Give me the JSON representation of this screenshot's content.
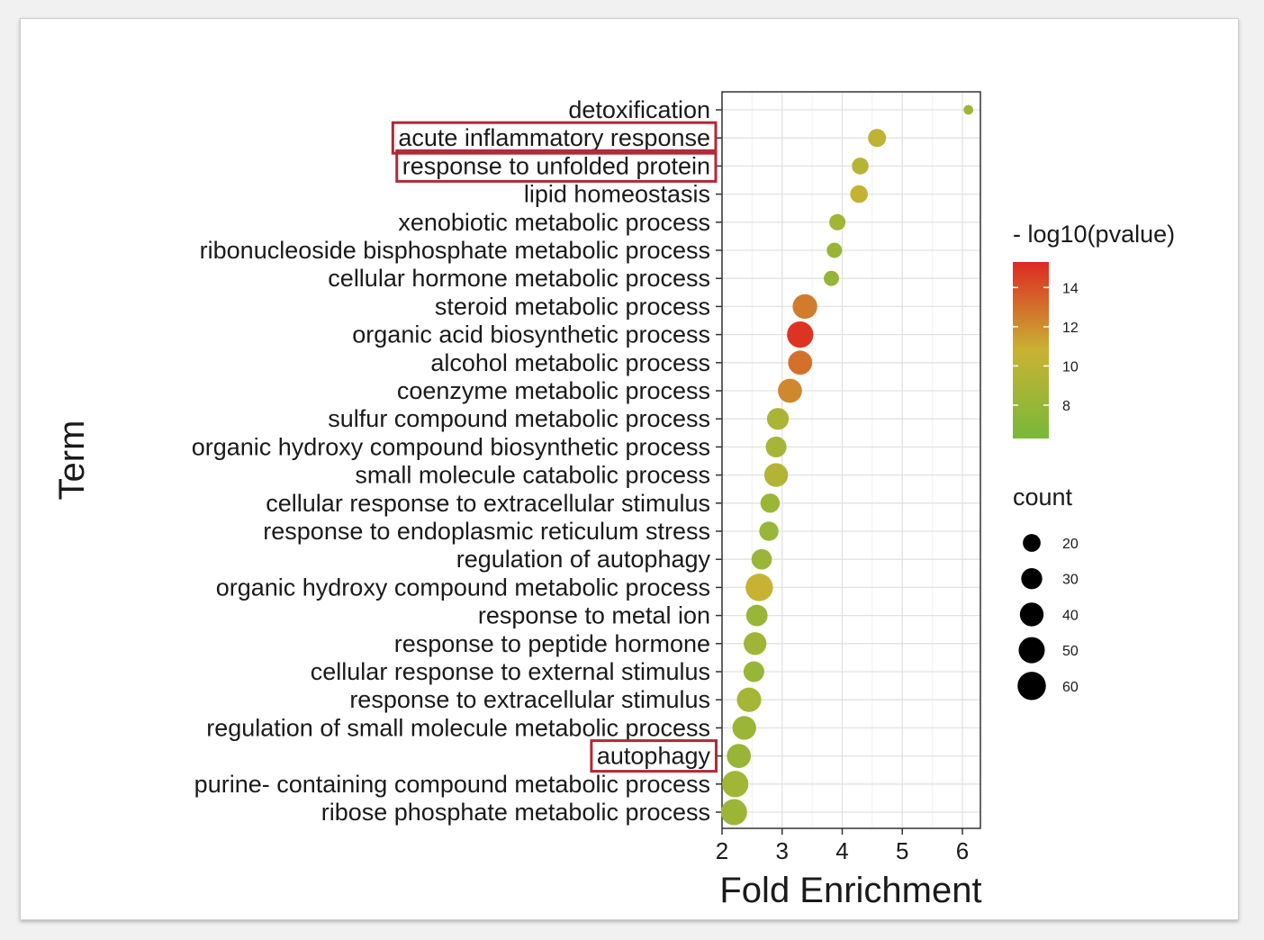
{
  "chart_data": {
    "type": "scatter",
    "xlabel": "Fold Enrichment",
    "ylabel": "Term",
    "xlim": [
      2,
      6.3
    ],
    "xticks": [
      2,
      3,
      4,
      5,
      6
    ],
    "grid": true,
    "color_legend": {
      "title": "- log10(pvalue)",
      "ticks": [
        14,
        12,
        10,
        8
      ],
      "range": [
        6.3,
        15.3
      ],
      "colors": [
        "#78b83a",
        "#dd2a23"
      ]
    },
    "size_legend": {
      "title": "count",
      "ticks": [
        20,
        30,
        40,
        50,
        60
      ]
    },
    "highlight_color": "#b02a35",
    "terms": [
      {
        "term": "detoxification",
        "fold": 6.1,
        "pvalue": 8.5,
        "count": 3,
        "highlighted": false
      },
      {
        "term": "acute inflammatory response",
        "fold": 4.58,
        "pvalue": 10.2,
        "count": 17,
        "highlighted": true
      },
      {
        "term": "response to unfolded protein",
        "fold": 4.3,
        "pvalue": 9.8,
        "count": 14,
        "highlighted": true
      },
      {
        "term": "lipid homeostasis",
        "fold": 4.28,
        "pvalue": 10.6,
        "count": 16,
        "highlighted": false
      },
      {
        "term": "xenobiotic metabolic process",
        "fold": 3.92,
        "pvalue": 8.6,
        "count": 13,
        "highlighted": false
      },
      {
        "term": "ribonucleoside bisphosphate metabolic process",
        "fold": 3.87,
        "pvalue": 8.0,
        "count": 11,
        "highlighted": false
      },
      {
        "term": "cellular hormone metabolic process",
        "fold": 3.82,
        "pvalue": 7.8,
        "count": 11,
        "highlighted": false
      },
      {
        "term": "steroid metabolic process",
        "fold": 3.38,
        "pvalue": 12.6,
        "count": 36,
        "highlighted": false
      },
      {
        "term": "organic acid biosynthetic process",
        "fold": 3.3,
        "pvalue": 15.0,
        "count": 42,
        "highlighted": false
      },
      {
        "term": "alcohol metabolic process",
        "fold": 3.3,
        "pvalue": 13.0,
        "count": 34,
        "highlighted": false
      },
      {
        "term": "coenzyme metabolic process",
        "fold": 3.13,
        "pvalue": 12.2,
        "count": 34,
        "highlighted": false
      },
      {
        "term": "sulfur compound metabolic process",
        "fold": 2.93,
        "pvalue": 9.2,
        "count": 27,
        "highlighted": false
      },
      {
        "term": "organic hydroxy compound biosynthetic process",
        "fold": 2.9,
        "pvalue": 8.8,
        "count": 24,
        "highlighted": false
      },
      {
        "term": "small molecule catabolic process",
        "fold": 2.9,
        "pvalue": 9.6,
        "count": 33,
        "highlighted": false
      },
      {
        "term": "cellular response to extracellular stimulus",
        "fold": 2.8,
        "pvalue": 8.3,
        "count": 20,
        "highlighted": false
      },
      {
        "term": "response to endoplasmic reticulum stress",
        "fold": 2.78,
        "pvalue": 8.1,
        "count": 20,
        "highlighted": false
      },
      {
        "term": "regulation of autophagy",
        "fold": 2.66,
        "pvalue": 8.2,
        "count": 23,
        "highlighted": false
      },
      {
        "term": "organic hydroxy compound metabolic process",
        "fold": 2.62,
        "pvalue": 10.7,
        "count": 46,
        "highlighted": false
      },
      {
        "term": "response to metal ion",
        "fold": 2.58,
        "pvalue": 8.1,
        "count": 26,
        "highlighted": false
      },
      {
        "term": "response to peptide hormone",
        "fold": 2.55,
        "pvalue": 8.5,
        "count": 30,
        "highlighted": false
      },
      {
        "term": "cellular response to external stimulus",
        "fold": 2.53,
        "pvalue": 8.0,
        "count": 24,
        "highlighted": false
      },
      {
        "term": "response to extracellular stimulus",
        "fold": 2.45,
        "pvalue": 8.8,
        "count": 35,
        "highlighted": false
      },
      {
        "term": "regulation of small molecule metabolic process",
        "fold": 2.37,
        "pvalue": 8.2,
        "count": 33,
        "highlighted": false
      },
      {
        "term": "autophagy",
        "fold": 2.28,
        "pvalue": 8.0,
        "count": 34,
        "highlighted": true
      },
      {
        "term": "purine- containing compound metabolic process",
        "fold": 2.22,
        "pvalue": 8.6,
        "count": 42,
        "highlighted": false
      },
      {
        "term": "ribose phosphate metabolic process",
        "fold": 2.2,
        "pvalue": 8.3,
        "count": 41,
        "highlighted": false
      }
    ]
  }
}
